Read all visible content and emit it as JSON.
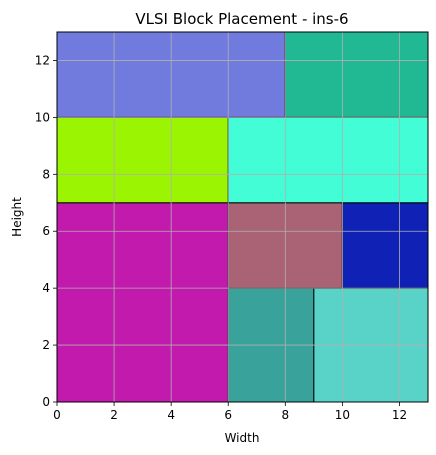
{
  "chart_data": {
    "type": "rect-placement",
    "title": "VLSI Block Placement - ins-6",
    "xlabel": "Width",
    "ylabel": "Height",
    "xlim": [
      0,
      13
    ],
    "ylim": [
      0,
      13
    ],
    "xticks": [
      0,
      2,
      4,
      6,
      8,
      10,
      12
    ],
    "yticks": [
      0,
      2,
      4,
      6,
      8,
      10,
      12
    ],
    "grid": true,
    "blocks": [
      {
        "x": 0,
        "y": 0,
        "w": 6,
        "h": 7,
        "color": "#c11aac"
      },
      {
        "x": 6,
        "y": 0,
        "w": 3,
        "h": 4,
        "color": "#39a39b"
      },
      {
        "x": 9,
        "y": 0,
        "w": 4,
        "h": 4,
        "color": "#59d3c7"
      },
      {
        "x": 6,
        "y": 4,
        "w": 4,
        "h": 3,
        "color": "#a96374"
      },
      {
        "x": 10,
        "y": 4,
        "w": 3,
        "h": 3,
        "color": "#1021b5"
      },
      {
        "x": 0,
        "y": 7,
        "w": 6,
        "h": 3,
        "color": "#9bf502"
      },
      {
        "x": 6,
        "y": 7,
        "w": 7,
        "h": 3,
        "color": "#43fdd7"
      },
      {
        "x": 0,
        "y": 10,
        "w": 8,
        "h": 3,
        "color": "#717bdd"
      },
      {
        "x": 8,
        "y": 10,
        "w": 5,
        "h": 3,
        "color": "#20b993"
      }
    ]
  }
}
